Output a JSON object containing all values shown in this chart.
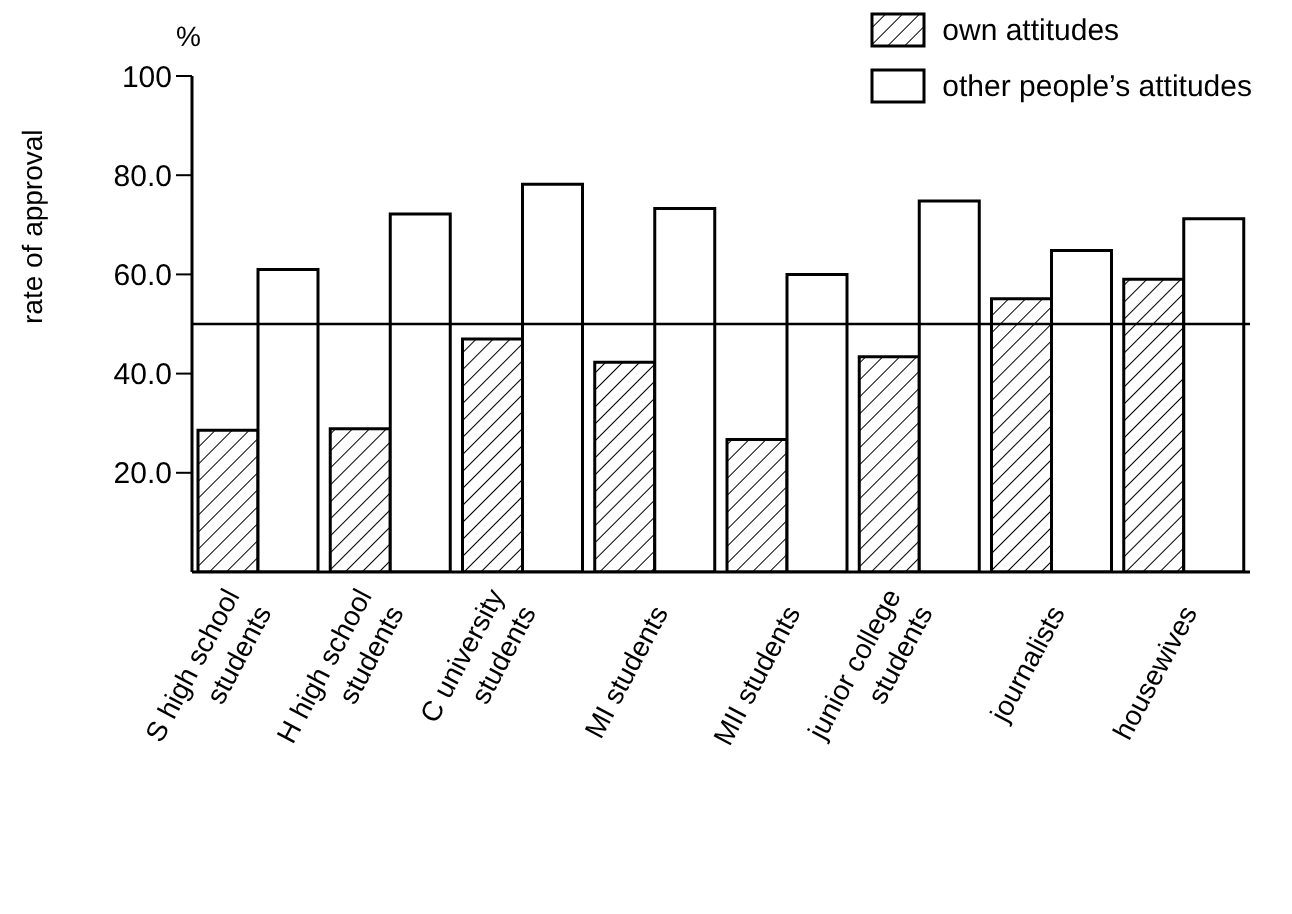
{
  "chart_data": {
    "type": "bar",
    "ylabel": "rate of approval",
    "annotations": [
      "%"
    ],
    "categories": [
      "S high school students",
      "H high school students",
      "C university students",
      "MI students",
      "MII students",
      "junior college students",
      "journalists",
      "housewives"
    ],
    "series": [
      {
        "name": "own attitudes",
        "color": "#000000",
        "values": [
          28.6,
          28.9,
          47.0,
          42.3,
          26.7,
          43.4,
          55.1,
          59.0
        ]
      },
      {
        "name": "other people’s attitudes",
        "color": "#ffffff",
        "values": [
          61.0,
          72.2,
          78.2,
          73.3,
          60.0,
          74.8,
          64.8,
          71.2
        ]
      }
    ],
    "ylim": [
      0,
      100
    ],
    "yticks": [
      {
        "value": 20,
        "label": "20.0"
      },
      {
        "value": 40,
        "label": "40.0"
      },
      {
        "value": 60,
        "label": "60.0"
      },
      {
        "value": 80,
        "label": "80.0"
      },
      100
    ],
    "ref_lines": [
      {
        "axis": "y",
        "value": 50,
        "color": "#000000"
      }
    ],
    "grid": false,
    "legend": "top right"
  }
}
